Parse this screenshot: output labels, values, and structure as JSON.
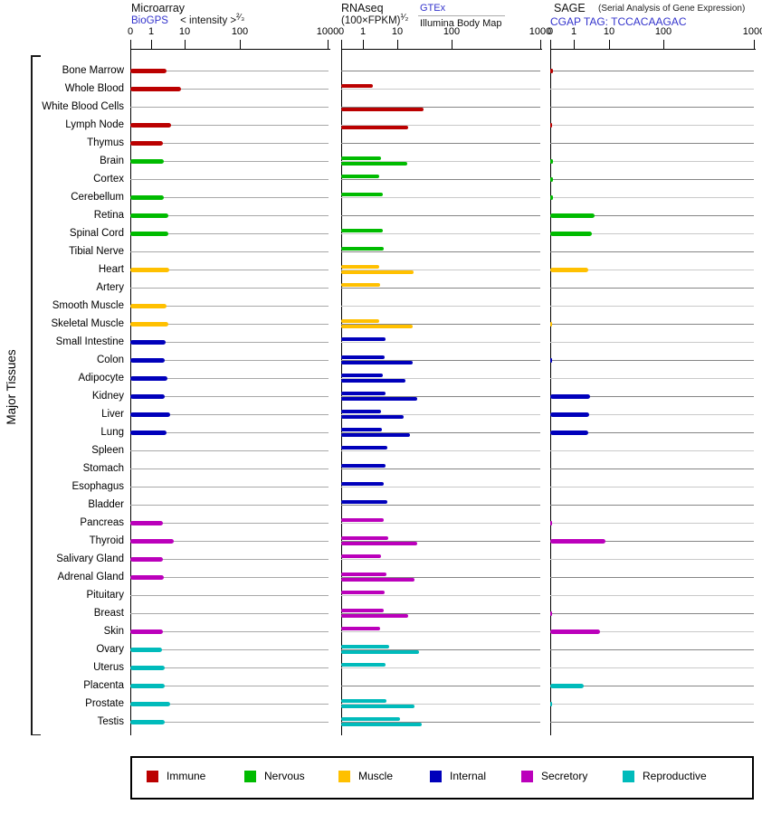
{
  "y_axis_label": "Major Tissues",
  "panels": {
    "microarray": {
      "title": "Microarray",
      "link": "BioGPS",
      "subtitle": "< intensity >",
      "exponent": "²⁄₃",
      "ticks": [
        "0",
        "1",
        "10",
        "100",
        "1000"
      ]
    },
    "rnaseq": {
      "title": "RNAseq",
      "subtitle": "(100×FPKM)",
      "exponent": "¹⁄₂",
      "link": "GTEx",
      "link2": "Illumina Body Map",
      "ticks": [
        "0",
        "1",
        "10",
        "100",
        "1000"
      ]
    },
    "sage": {
      "title": "SAGE",
      "title_note": "(Serial Analysis of Gene Expression)",
      "link": "CGAP TAG: TCCACAAGAC",
      "ticks": [
        "0",
        "1",
        "10",
        "100",
        "1000"
      ]
    }
  },
  "colors": {
    "immune": "#bb0000",
    "nervous": "#00bb00",
    "muscle": "#ffc000",
    "internal": "#0000bb",
    "secretory": "#bb00bb",
    "reproductive": "#00bbbb"
  },
  "legend": {
    "items": [
      {
        "label": "Immune",
        "group": "immune"
      },
      {
        "label": "Nervous",
        "group": "nervous"
      },
      {
        "label": "Muscle",
        "group": "muscle"
      },
      {
        "label": "Internal",
        "group": "internal"
      },
      {
        "label": "Secretory",
        "group": "secretory"
      },
      {
        "label": "Reproductive",
        "group": "reproductive"
      }
    ]
  },
  "chart_data": {
    "type": "bar",
    "orientation": "horizontal",
    "axis_values": [
      0,
      1,
      10,
      100,
      1000
    ],
    "axis_note": "power-transformed pseudo-log scale; series: microarray=BioGPS intensity, gtex=GTEx FPKM, illumina=Illumina Body Map FPKM, sage=CGAP SAGE tag counts",
    "rows": [
      {
        "tissue": "Bone Marrow",
        "group": "immune",
        "microarray": 2.9,
        "gtex": null,
        "illumina": null,
        "sage": 0.12
      },
      {
        "tissue": "Whole Blood",
        "group": "immune",
        "microarray": 7.9,
        "gtex": 1.9,
        "illumina": null,
        "sage": null
      },
      {
        "tissue": "White Blood Cells",
        "group": "immune",
        "microarray": null,
        "gtex": null,
        "illumina": 30,
        "sage": null
      },
      {
        "tissue": "Lymph Node",
        "group": "immune",
        "microarray": 3.9,
        "gtex": null,
        "illumina": 16,
        "sage": 0.08
      },
      {
        "tissue": "Thymus",
        "group": "immune",
        "microarray": 2.2,
        "gtex": null,
        "illumina": null,
        "sage": null
      },
      {
        "tissue": "Brain",
        "group": "nervous",
        "microarray": 2.4,
        "gtex": 3.3,
        "illumina": 15,
        "sage": 0.12
      },
      {
        "tissue": "Cortex",
        "group": "nervous",
        "microarray": null,
        "gtex": 3.0,
        "illumina": null,
        "sage": 0.12
      },
      {
        "tissue": "Cerebellum",
        "group": "nervous",
        "microarray": 2.4,
        "gtex": 3.9,
        "illumina": null,
        "sage": 0.12
      },
      {
        "tissue": "Retina",
        "group": "nervous",
        "microarray": 3.2,
        "gtex": null,
        "illumina": null,
        "sage": 3.8
      },
      {
        "tissue": "Spinal Cord",
        "group": "nervous",
        "microarray": 3.2,
        "gtex": 3.9,
        "illumina": null,
        "sage": 3.3
      },
      {
        "tissue": "Tibial Nerve",
        "group": "nervous",
        "microarray": null,
        "gtex": 4.1,
        "illumina": null,
        "sage": null
      },
      {
        "tissue": "Heart",
        "group": "muscle",
        "microarray": 3.4,
        "gtex": 3.0,
        "illumina": 20,
        "sage": 2.6
      },
      {
        "tissue": "Artery",
        "group": "muscle",
        "microarray": null,
        "gtex": 3.1,
        "illumina": null,
        "sage": null
      },
      {
        "tissue": "Smooth Muscle",
        "group": "muscle",
        "microarray": 2.9,
        "gtex": null,
        "illumina": null,
        "sage": null
      },
      {
        "tissue": "Skeletal Muscle",
        "group": "muscle",
        "microarray": 3.2,
        "gtex": 2.9,
        "illumina": 19,
        "sage": 0.08
      },
      {
        "tissue": "Small Intestine",
        "group": "internal",
        "microarray": 2.7,
        "gtex": 4.5,
        "illumina": null,
        "sage": null
      },
      {
        "tissue": "Colon",
        "group": "internal",
        "microarray": 2.6,
        "gtex": 4.2,
        "illumina": 19,
        "sage": 0.05
      },
      {
        "tissue": "Adipocyte",
        "group": "internal",
        "microarray": 3.0,
        "gtex": 3.9,
        "illumina": 14,
        "sage": null
      },
      {
        "tissue": "Kidney",
        "group": "internal",
        "microarray": 2.5,
        "gtex": 4.5,
        "illumina": 23,
        "sage": 2.9
      },
      {
        "tissue": "Liver",
        "group": "internal",
        "microarray": 3.6,
        "gtex": 3.4,
        "illumina": 13,
        "sage": 2.8
      },
      {
        "tissue": "Lung",
        "group": "internal",
        "microarray": 2.8,
        "gtex": 3.6,
        "illumina": 17,
        "sage": 2.5
      },
      {
        "tissue": "Spleen",
        "group": "internal",
        "microarray": null,
        "gtex": 5.2,
        "illumina": null,
        "sage": null
      },
      {
        "tissue": "Stomach",
        "group": "internal",
        "microarray": null,
        "gtex": 4.5,
        "illumina": null,
        "sage": null
      },
      {
        "tissue": "Esophagus",
        "group": "internal",
        "microarray": null,
        "gtex": 4.0,
        "illumina": null,
        "sage": null
      },
      {
        "tissue": "Bladder",
        "group": "internal",
        "microarray": null,
        "gtex": 5.2,
        "illumina": null,
        "sage": null
      },
      {
        "tissue": "Pancreas",
        "group": "secretory",
        "microarray": 2.3,
        "gtex": 4.0,
        "illumina": null,
        "sage": 0.05
      },
      {
        "tissue": "Thyroid",
        "group": "secretory",
        "microarray": 4.6,
        "gtex": 5.5,
        "illumina": 23,
        "sage": 8.0
      },
      {
        "tissue": "Salivary Gland",
        "group": "secretory",
        "microarray": 2.3,
        "gtex": 3.3,
        "illumina": null,
        "sage": null
      },
      {
        "tissue": "Adrenal Gland",
        "group": "secretory",
        "microarray": 2.4,
        "gtex": 4.8,
        "illumina": 21,
        "sage": null
      },
      {
        "tissue": "Pituitary",
        "group": "secretory",
        "microarray": null,
        "gtex": 4.2,
        "illumina": null,
        "sage": null
      },
      {
        "tissue": "Breast",
        "group": "secretory",
        "microarray": null,
        "gtex": 4.0,
        "illumina": 16,
        "sage": 0.05
      },
      {
        "tissue": "Skin",
        "group": "secretory",
        "microarray": 2.3,
        "gtex": 3.2,
        "illumina": null,
        "sage": 5.4
      },
      {
        "tissue": "Ovary",
        "group": "reproductive",
        "microarray": 2.1,
        "gtex": 5.8,
        "illumina": 25,
        "sage": null
      },
      {
        "tissue": "Uterus",
        "group": "reproductive",
        "microarray": 2.5,
        "gtex": 4.5,
        "illumina": null,
        "sage": null
      },
      {
        "tissue": "Placenta",
        "group": "reproductive",
        "microarray": 2.6,
        "gtex": null,
        "illumina": null,
        "sage": 1.9
      },
      {
        "tissue": "Prostate",
        "group": "reproductive",
        "microarray": 3.6,
        "gtex": 4.9,
        "illumina": 21,
        "sage": 0.08
      },
      {
        "tissue": "Testis",
        "group": "reproductive",
        "microarray": 2.5,
        "gtex": 11.4,
        "illumina": 28,
        "sage": null
      }
    ]
  }
}
